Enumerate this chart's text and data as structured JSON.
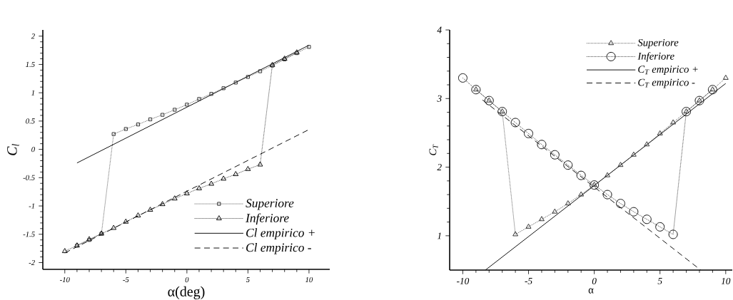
{
  "chart_data": [
    {
      "type": "line",
      "xlabel": "α(deg)",
      "ylabel": "C$_{l}$",
      "x": [
        -10,
        -9,
        -8,
        -7,
        -6,
        -5,
        -4,
        -3,
        -2,
        -1,
        0,
        1,
        2,
        3,
        4,
        5,
        6,
        7,
        8,
        9,
        10
      ],
      "series": [
        {
          "name": "Superiore",
          "color": "#2a2a2a",
          "marker": "square",
          "line_style": "dotted",
          "values": [
            null,
            -1.7,
            -1.6,
            -1.49,
            0.27,
            0.36,
            0.44,
            0.53,
            0.61,
            0.7,
            0.79,
            0.89,
            0.98,
            1.08,
            1.18,
            1.28,
            1.38,
            1.48,
            1.59,
            1.7,
            1.81
          ]
        },
        {
          "name": "Inferiore",
          "color": "#000000",
          "marker": "triangle",
          "line_style": "dotted",
          "values": [
            -1.8,
            -1.7,
            -1.59,
            -1.49,
            -1.39,
            -1.28,
            -1.17,
            -1.07,
            -0.97,
            -0.87,
            -0.78,
            -0.69,
            -0.61,
            -0.52,
            -0.44,
            -0.35,
            -0.27,
            1.49,
            1.6,
            1.71,
            null
          ]
        },
        {
          "name": "Cl empirico +",
          "color": "#000000",
          "marker": "none",
          "line_style": "solid",
          "x": [
            -9,
            10
          ],
          "values": [
            -0.24,
            1.84
          ]
        },
        {
          "name": "Cl empirico -",
          "color": "#000000",
          "marker": "none",
          "line_style": "dashed",
          "x": [
            -10,
            10
          ],
          "values": [
            -1.83,
            0.35
          ]
        }
      ],
      "xlim": [
        -11.8,
        11.7
      ],
      "ylim": [
        -2.12,
        2.11
      ],
      "xticks": [
        -10,
        -5,
        0,
        5,
        10
      ],
      "yticks": [
        -2,
        -1.5,
        -1,
        -0.5,
        0,
        0.5,
        1,
        1.5,
        2
      ],
      "grid": false,
      "legend": "bottom right"
    },
    {
      "type": "line",
      "xlabel": "α",
      "ylabel": "C$_{T}$",
      "x": [
        -10,
        -9,
        -8,
        -7,
        -6,
        -5,
        -4,
        -3,
        -2,
        -1,
        0,
        1,
        2,
        3,
        4,
        5,
        6,
        7,
        8,
        9,
        10
      ],
      "series": [
        {
          "name": "Superiore",
          "color": "#2a2a2a",
          "marker": "triangle",
          "line_style": "dotted",
          "values": [
            null,
            3.13,
            2.97,
            2.81,
            1.02,
            1.13,
            1.24,
            1.35,
            1.47,
            1.6,
            1.74,
            1.88,
            2.03,
            2.18,
            2.33,
            2.49,
            2.65,
            2.81,
            2.97,
            3.13,
            3.3
          ]
        },
        {
          "name": "Inferiore",
          "color": "#000000",
          "marker": "circle",
          "line_style": "dotted",
          "values": [
            3.3,
            3.13,
            2.97,
            2.81,
            2.65,
            2.49,
            2.33,
            2.18,
            2.03,
            1.88,
            1.74,
            1.6,
            1.47,
            1.35,
            1.24,
            1.13,
            1.02,
            2.81,
            2.97,
            3.13,
            null
          ]
        },
        {
          "name": "C$_{T}$ empirico +",
          "color": "#000000",
          "marker": "none",
          "line_style": "solid",
          "x": [
            -8.28,
            10
          ],
          "values": [
            0.5,
            3.22
          ]
        },
        {
          "name": "C$_{T}$ empirico -",
          "color": "#000000",
          "marker": "none",
          "line_style": "dashed",
          "x": [
            -8.5,
            8.1
          ],
          "values": [
            2.98,
            0.5
          ]
        }
      ],
      "xlim": [
        -11,
        10.5
      ],
      "ylim": [
        0.5,
        4
      ],
      "xticks": [
        -10,
        -5,
        0,
        5,
        10
      ],
      "yticks": [
        1,
        2,
        3,
        4
      ],
      "grid": false,
      "legend": "top right"
    }
  ]
}
